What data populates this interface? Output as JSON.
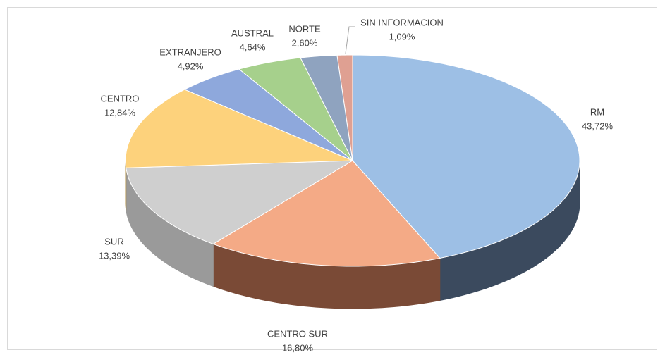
{
  "chart_data": {
    "type": "pie3d",
    "categories": [
      "RM",
      "CENTRO SUR",
      "SUR",
      "CENTRO",
      "EXTRANJERO",
      "AUSTRAL",
      "NORTE",
      "SIN INFORMACION"
    ],
    "values": [
      43.72,
      16.8,
      13.39,
      12.84,
      4.92,
      4.64,
      2.6,
      1.09
    ],
    "value_labels": [
      "43,72%",
      "16,80%",
      "13,39%",
      "12,84%",
      "4,92%",
      "4,64%",
      "2,60%",
      "1,09%"
    ],
    "colors": [
      "#9dbfe5",
      "#f4aa86",
      "#cfcfcf",
      "#fdd27c",
      "#8ea8dc",
      "#a6d08c",
      "#8fa3bf",
      "#dfa092"
    ],
    "side_colors": [
      "#3b4a5e",
      "#7a4a36",
      "#9a9a9a",
      "#b0904a",
      "#5a6a90",
      "#6a8a56",
      "#5a6478",
      "#8a5a50"
    ]
  }
}
